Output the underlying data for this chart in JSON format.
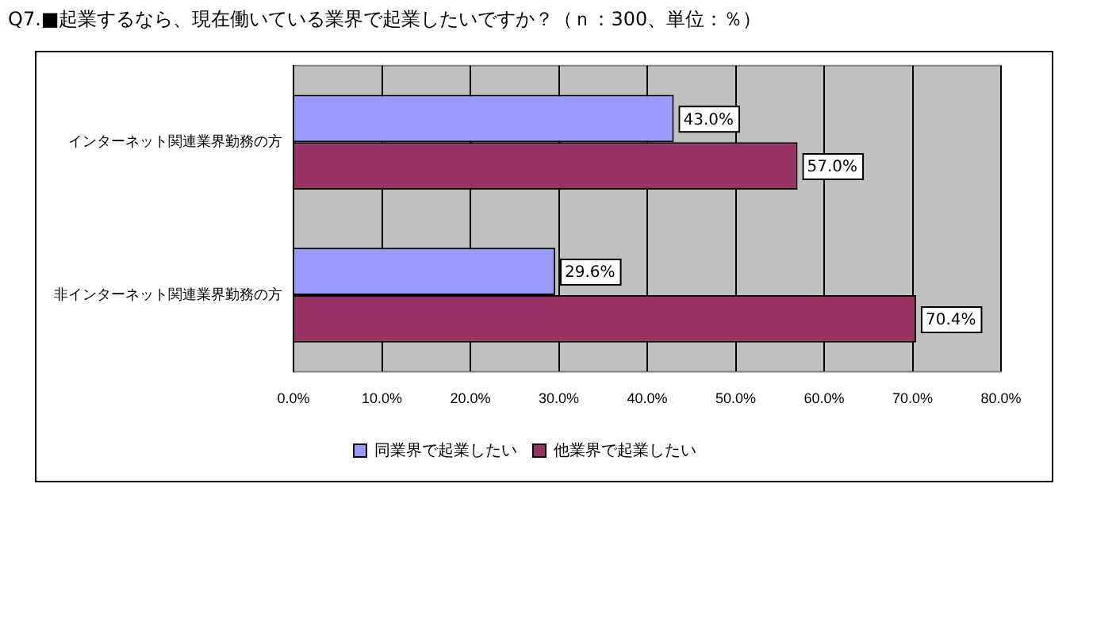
{
  "chart_data": {
    "type": "bar",
    "orientation": "horizontal",
    "title": "Q7.■起業するなら、現在働いている業界で起業したいですか？（ｎ：300、単位：％）",
    "categories": [
      "インターネット関連業界勤務の方",
      "非インターネット関連業界勤務の方"
    ],
    "series": [
      {
        "name": "同業界で起業したい",
        "color": "#9999ff",
        "values": [
          43.0,
          29.6
        ],
        "value_labels": [
          "43.0%",
          "29.6%"
        ]
      },
      {
        "name": "他業界で起業したい",
        "color": "#993366",
        "values": [
          57.0,
          70.4
        ],
        "value_labels": [
          "57.0%",
          "70.4%"
        ]
      }
    ],
    "xlim": [
      0,
      80
    ],
    "xticks": [
      {
        "value": 0,
        "label": "0.0%"
      },
      {
        "value": 10,
        "label": "10.0%"
      },
      {
        "value": 20,
        "label": "20.0%"
      },
      {
        "value": 30,
        "label": "30.0%"
      },
      {
        "value": 40,
        "label": "40.0%"
      },
      {
        "value": 50,
        "label": "50.0%"
      },
      {
        "value": 60,
        "label": "60.0%"
      },
      {
        "value": 70,
        "label": "70.0%"
      },
      {
        "value": 80,
        "label": "80.0%"
      }
    ],
    "grid": "x",
    "legend": "bottom"
  }
}
